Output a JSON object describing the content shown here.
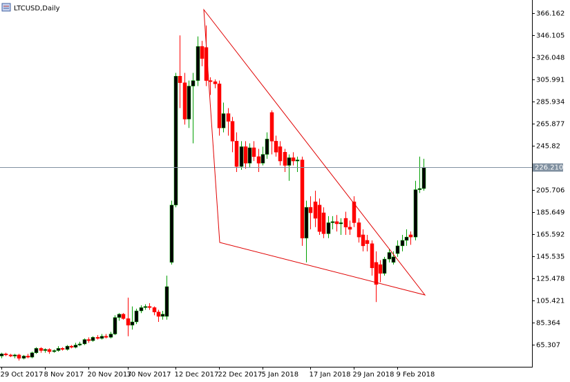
{
  "chart_data": {
    "type": "candlestick",
    "title": "LTCUSD,Daily",
    "up_body_color": "#000000",
    "up_wick_color": "#00a000",
    "down_color": "#ff0000",
    "ylim": [
      45.25,
      378.1
    ],
    "yticks": [
      65.307,
      85.364,
      105.421,
      125.478,
      145.535,
      165.592,
      185.649,
      205.706,
      226.21,
      245.82,
      265.877,
      285.934,
      305.991,
      326.048,
      346.105,
      366.162
    ],
    "last_price": {
      "value": 226.21,
      "label": "226.210"
    },
    "categories": [
      "29 Oct 2017",
      null,
      null,
      null,
      null,
      null,
      null,
      null,
      null,
      null,
      "8 Nov 2017",
      null,
      null,
      null,
      null,
      null,
      null,
      null,
      null,
      null,
      "20 Nov 2017",
      null,
      null,
      null,
      null,
      null,
      null,
      null,
      null,
      "30 Nov 2017",
      null,
      null,
      null,
      null,
      null,
      null,
      null,
      null,
      null,
      null,
      "12 Dec 2017",
      null,
      null,
      null,
      null,
      null,
      null,
      null,
      null,
      null,
      "22 Dec 2017",
      null,
      null,
      null,
      null,
      null,
      null,
      null,
      null,
      null,
      "5 Jan 2018",
      null,
      null,
      null,
      null,
      null,
      null,
      null,
      null,
      null,
      null,
      "17 Jan 2018",
      null,
      null,
      null,
      null,
      null,
      null,
      null,
      null,
      null,
      "29 Jan 2018",
      null,
      null,
      null,
      null,
      null,
      null,
      null,
      null,
      null,
      "9 Feb 2018",
      null,
      null,
      null,
      null,
      null,
      null
    ],
    "ohlc": [
      [
        55,
        58,
        53,
        57
      ],
      [
        57,
        58,
        55,
        56
      ],
      [
        56,
        57,
        54,
        55
      ],
      [
        55,
        57,
        53,
        56
      ],
      [
        56,
        57,
        51,
        53
      ],
      [
        53,
        56,
        52,
        55
      ],
      [
        55,
        57,
        53,
        54
      ],
      [
        54,
        59,
        53,
        58
      ],
      [
        58,
        63,
        57,
        62
      ],
      [
        62,
        63,
        58,
        60
      ],
      [
        60,
        62,
        58,
        61
      ],
      [
        61,
        62,
        57,
        59
      ],
      [
        59,
        61,
        58,
        60
      ],
      [
        60,
        64,
        59,
        62
      ],
      [
        62,
        63,
        60,
        61
      ],
      [
        61,
        65,
        60,
        64
      ],
      [
        64,
        65,
        62,
        63
      ],
      [
        63,
        67,
        62,
        65
      ],
      [
        65,
        68,
        64,
        66
      ],
      [
        66,
        71,
        65,
        70
      ],
      [
        70,
        72,
        67,
        69
      ],
      [
        69,
        73,
        68,
        72
      ],
      [
        72,
        74,
        70,
        71
      ],
      [
        71,
        75,
        70,
        73
      ],
      [
        73,
        75,
        71,
        72
      ],
      [
        72,
        77,
        71,
        75
      ],
      [
        75,
        92,
        74,
        90
      ],
      [
        90,
        94,
        87,
        93
      ],
      [
        93,
        94,
        88,
        89
      ],
      [
        89,
        108,
        73,
        83
      ],
      [
        83,
        100,
        79,
        86
      ],
      [
        86,
        98,
        84,
        96
      ],
      [
        96,
        101,
        94,
        99
      ],
      [
        99,
        102,
        97,
        100
      ],
      [
        100,
        103,
        97,
        99
      ],
      [
        99,
        100,
        92,
        95
      ],
      [
        95,
        97,
        86,
        91
      ],
      [
        91,
        96,
        88,
        93
      ],
      [
        91,
        128,
        88,
        118
      ],
      [
        140,
        196,
        138,
        192
      ],
      [
        192,
        312,
        190,
        309
      ],
      [
        309,
        346,
        280,
        303
      ],
      [
        303,
        312,
        265,
        270
      ],
      [
        270,
        305,
        262,
        300
      ],
      [
        300,
        312,
        248,
        305
      ],
      [
        305,
        345,
        300,
        336
      ],
      [
        336,
        341,
        318,
        325
      ],
      [
        335,
        355,
        300,
        305
      ],
      [
        305,
        308,
        292,
        304
      ],
      [
        304,
        306,
        298,
        302
      ],
      [
        302,
        305,
        255,
        262
      ],
      [
        262,
        285,
        258,
        275
      ],
      [
        275,
        280,
        255,
        268
      ],
      [
        268,
        272,
        240,
        250
      ],
      [
        250,
        258,
        222,
        227
      ],
      [
        227,
        250,
        224,
        245
      ],
      [
        245,
        250,
        225,
        230
      ],
      [
        230,
        248,
        226,
        244
      ],
      [
        244,
        250,
        232,
        236
      ],
      [
        236,
        243,
        222,
        230
      ],
      [
        230,
        245,
        228,
        238
      ],
      [
        238,
        258,
        234,
        252
      ],
      [
        276,
        278,
        238,
        250
      ],
      [
        250,
        255,
        236,
        240
      ],
      [
        245,
        250,
        228,
        232
      ],
      [
        240,
        243,
        222,
        228
      ],
      [
        228,
        238,
        214,
        235
      ],
      [
        235,
        240,
        228,
        232
      ],
      [
        232,
        236,
        222,
        233
      ],
      [
        233,
        236,
        155,
        162
      ],
      [
        162,
        196,
        140,
        190
      ],
      [
        190,
        200,
        170,
        185
      ],
      [
        195,
        205,
        172,
        180
      ],
      [
        192,
        198,
        165,
        168
      ],
      [
        185,
        190,
        162,
        166
      ],
      [
        166,
        182,
        162,
        176
      ],
      [
        176,
        182,
        170,
        177
      ],
      [
        177,
        183,
        168,
        175
      ],
      [
        175,
        180,
        165,
        176
      ],
      [
        180,
        186,
        165,
        172
      ],
      [
        172,
        178,
        165,
        170
      ],
      [
        195,
        200,
        172,
        176
      ],
      [
        176,
        180,
        158,
        163
      ],
      [
        165,
        170,
        150,
        155
      ],
      [
        160,
        165,
        150,
        157
      ],
      [
        157,
        160,
        128,
        135
      ],
      [
        140,
        150,
        104,
        120
      ],
      [
        138,
        142,
        122,
        130
      ],
      [
        130,
        145,
        128,
        143
      ],
      [
        143,
        152,
        140,
        149
      ],
      [
        140,
        150,
        138,
        145
      ],
      [
        148,
        160,
        145,
        155
      ],
      [
        155,
        165,
        150,
        160
      ],
      [
        160,
        170,
        155,
        163
      ],
      [
        165,
        168,
        156,
        163
      ],
      [
        163,
        214,
        160,
        206
      ],
      [
        206,
        236,
        203,
        207
      ],
      [
        207,
        234,
        205,
        226.21
      ]
    ]
  }
}
